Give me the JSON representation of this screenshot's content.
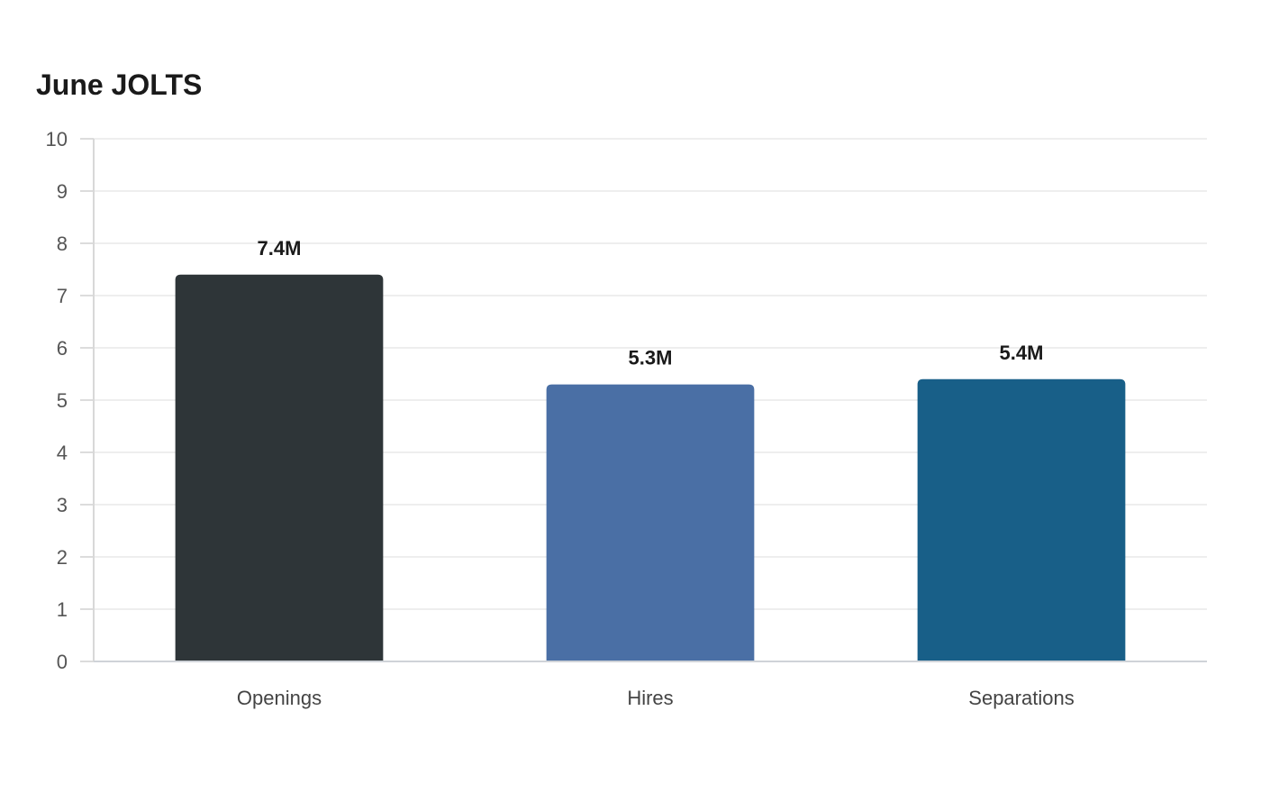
{
  "chart_data": {
    "type": "bar",
    "title": "June JOLTS",
    "categories": [
      "Openings",
      "Hires",
      "Separations"
    ],
    "values": [
      7.4,
      5.3,
      5.4
    ],
    "data_labels": [
      "7.4M",
      "5.3M",
      "5.4M"
    ],
    "colors": [
      "#2e3538",
      "#4a6fa5",
      "#185f88"
    ],
    "xlabel": "",
    "ylabel": "",
    "ylim": [
      0,
      10
    ],
    "yticks": [
      0,
      1,
      2,
      3,
      4,
      5,
      6,
      7,
      8,
      9,
      10
    ],
    "grid": true,
    "legend": "none"
  }
}
